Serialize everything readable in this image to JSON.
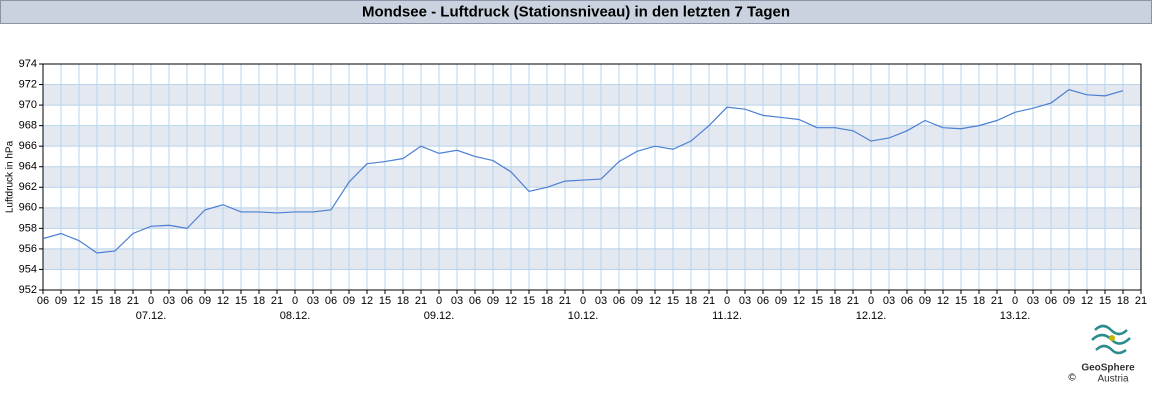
{
  "chart_data": {
    "type": "line",
    "title": "Mondsee - Luftdruck (Stationsniveau) in den letzten 7 Tagen",
    "y_label": "Luftdruck in hPa",
    "categories": [
      "06",
      "09",
      "12",
      "15",
      "18",
      "21",
      "0",
      "03",
      "06",
      "09",
      "12",
      "15",
      "18",
      "21",
      "0",
      "03",
      "06",
      "09",
      "12",
      "15",
      "18",
      "21",
      "0",
      "03",
      "06",
      "09",
      "12",
      "15",
      "18",
      "21",
      "0",
      "03",
      "06",
      "09",
      "12",
      "15",
      "18",
      "21",
      "0",
      "03",
      "06",
      "09",
      "12",
      "15",
      "18",
      "21",
      "0",
      "03",
      "06",
      "09",
      "12",
      "15",
      "18",
      "21",
      "0",
      "03",
      "06",
      "09",
      "12",
      "15",
      "18",
      "21"
    ],
    "dates": [
      null,
      null,
      null,
      null,
      null,
      null,
      "07.12.",
      null,
      null,
      null,
      null,
      null,
      null,
      null,
      "08.12.",
      null,
      null,
      null,
      null,
      null,
      null,
      null,
      "09.12.",
      null,
      null,
      null,
      null,
      null,
      null,
      null,
      "10.12.",
      null,
      null,
      null,
      null,
      null,
      null,
      null,
      "11.12.",
      null,
      null,
      null,
      null,
      null,
      null,
      null,
      "12.12.",
      null,
      null,
      null,
      null,
      null,
      null,
      null,
      "13.12.",
      null,
      null,
      null,
      null,
      null,
      null,
      null
    ],
    "series": [
      {
        "name": "Luftdruck",
        "color": "#4a7fd4",
        "values": [
          957.0,
          957.5,
          956.8,
          955.6,
          955.8,
          957.5,
          958.2,
          958.3,
          958.0,
          959.8,
          960.3,
          959.6,
          959.6,
          959.5,
          959.6,
          959.6,
          959.8,
          962.5,
          964.3,
          964.5,
          964.8,
          966.0,
          965.3,
          965.6,
          965.0,
          964.6,
          963.5,
          961.6,
          962.0,
          962.6,
          962.7,
          962.8,
          964.5,
          965.5,
          966.0,
          965.7,
          966.5,
          968.0,
          969.8,
          969.6,
          969.0,
          968.8,
          968.6,
          967.8,
          967.8,
          967.5,
          966.5,
          966.8,
          967.5,
          968.5,
          967.8,
          967.7,
          968.0,
          968.5,
          969.3,
          969.7,
          970.2,
          971.5,
          971.0,
          970.9,
          971.4,
          null
        ]
      }
    ],
    "ylim": [
      952,
      974
    ],
    "yticks": [
      952,
      954,
      956,
      958,
      960,
      962,
      964,
      966,
      968,
      970,
      972,
      974
    ],
    "grid": true,
    "logo": {
      "name": "GeoSphere",
      "sub": "Austria",
      "copyright": "©"
    }
  }
}
